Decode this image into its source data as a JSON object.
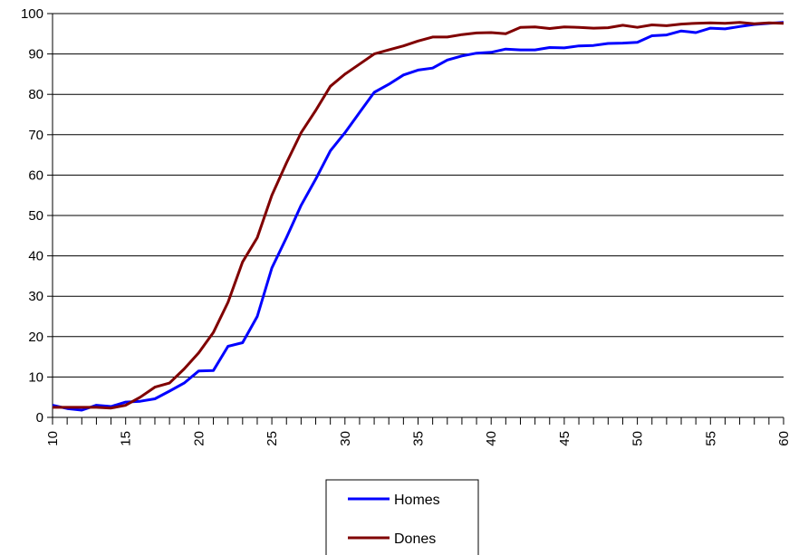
{
  "chart_data": {
    "type": "line",
    "title": "",
    "xlabel": "",
    "ylabel": "",
    "xlim": [
      10,
      60
    ],
    "ylim": [
      0,
      100
    ],
    "x_ticks": [
      "10",
      "15",
      "20",
      "25",
      "30",
      "35",
      "40",
      "45",
      "50",
      "55",
      "60"
    ],
    "y_ticks": [
      "0",
      "10",
      "20",
      "30",
      "40",
      "50",
      "60",
      "70",
      "80",
      "90",
      "100"
    ],
    "grid": "horizontal",
    "legend_position": "bottom-center",
    "x": [
      10,
      11,
      12,
      13,
      14,
      15,
      16,
      17,
      18,
      19,
      20,
      21,
      22,
      23,
      24,
      25,
      26,
      27,
      28,
      29,
      30,
      31,
      32,
      33,
      34,
      35,
      36,
      37,
      38,
      39,
      40,
      41,
      42,
      43,
      44,
      45,
      46,
      47,
      48,
      49,
      50,
      51,
      52,
      53,
      54,
      55,
      56,
      57,
      58,
      59,
      60
    ],
    "series": [
      {
        "name": "Homes",
        "color": "#0000ff",
        "values": [
          3,
          2.2,
          1.8,
          3,
          2.7,
          3.8,
          4,
          4.6,
          6.5,
          8.5,
          11.5,
          11.6,
          17.6,
          18.5,
          25,
          37,
          44.5,
          52.5,
          59,
          66,
          70.5,
          75.5,
          80.5,
          82.5,
          84.8,
          86,
          86.5,
          88.5,
          89.5,
          90.2,
          90.4,
          91.2,
          91,
          91,
          91.6,
          91.5,
          92,
          92.1,
          92.6,
          92.7,
          92.9,
          94.5,
          94.7,
          95.7,
          95.3,
          96.4,
          96.2,
          96.8,
          97.3,
          97.6,
          97.8
        ]
      },
      {
        "name": "Dones",
        "color": "#800000",
        "values": [
          2.5,
          2.5,
          2.5,
          2.5,
          2.3,
          3,
          5,
          7.5,
          8.5,
          12,
          16,
          21,
          28.5,
          38.5,
          44.5,
          55,
          63,
          70.5,
          76,
          82,
          85,
          87.5,
          90,
          91,
          92,
          93.2,
          94.2,
          94.2,
          94.8,
          95.2,
          95.3,
          95,
          96.6,
          96.7,
          96.3,
          96.7,
          96.6,
          96.4,
          96.5,
          97.1,
          96.6,
          97.2,
          97,
          97.4,
          97.6,
          97.7,
          97.6,
          97.8,
          97.5,
          97.7,
          97.6
        ]
      }
    ]
  }
}
